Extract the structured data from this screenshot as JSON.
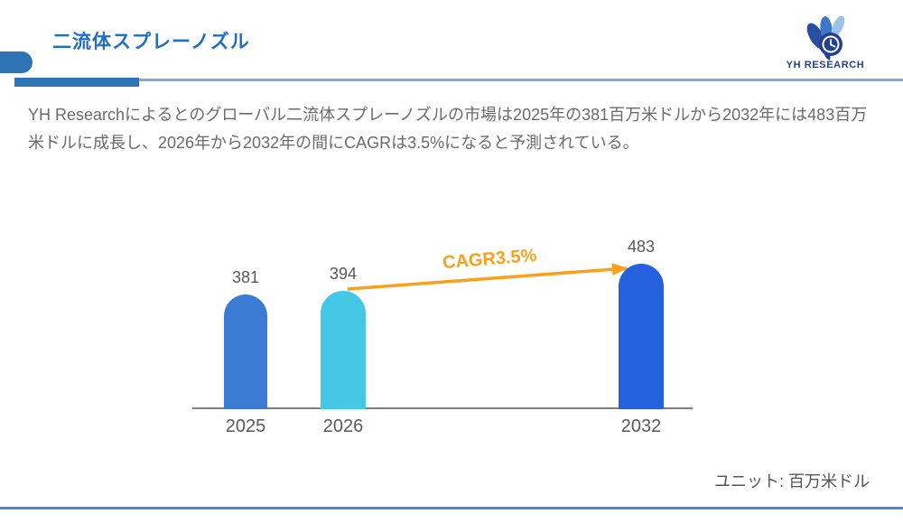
{
  "header": {
    "title": "二流体スプレーノズル",
    "logo": {
      "text": "YH RESEARCH"
    }
  },
  "intro": "YH Researchによるとのグローバル二流体スプレーノズルの市場は2025年の381百万米ドルから2032年には483百万米ドルに成長し、2026年から2032年の間にCAGRは3.5%になると予測されている。",
  "chart_data": {
    "type": "bar",
    "title": "",
    "categories": [
      "2025",
      "2026",
      "2032"
    ],
    "values": [
      381,
      394,
      483
    ],
    "bar_colors": [
      "#3B7BD3",
      "#45C8E6",
      "#2561DF"
    ],
    "value_label_color": "#595959",
    "annotation": {
      "text": "CAGR3.5%",
      "color": "#F9A11C"
    },
    "unit_label": "ユニット: 百万米ドル",
    "xlabel": "",
    "ylabel": "",
    "ylim": [
      0,
      483
    ],
    "grid": false,
    "legend": "none",
    "axis_color": "#7F7F7F"
  },
  "colors": {
    "title_blue": "#1F6FC6",
    "decoration_blue": "#2E74B5",
    "thin_line_blue": "#7FA9DB",
    "bottom_line_blue": "#4E8BC8",
    "body_text_gray": "#6B6B6B",
    "logo_navy": "#24418E"
  }
}
